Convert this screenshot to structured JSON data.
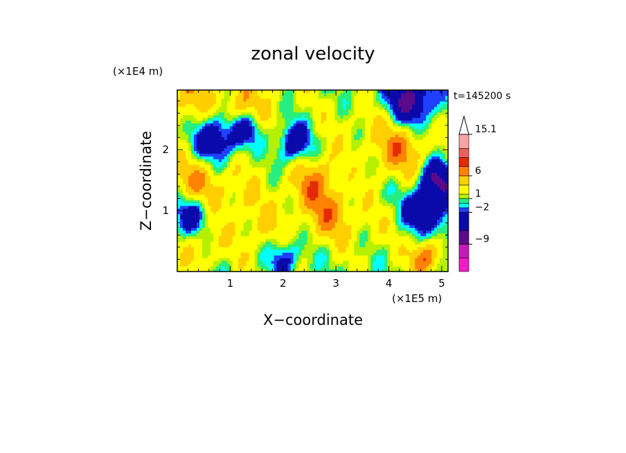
{
  "chart_data": {
    "type": "heatmap",
    "title": "zonal velocity",
    "xlabel": "X−coordinate",
    "ylabel": "Z−coordinate",
    "x_unit": "(×1E5 m)",
    "y_unit": "(×1E4 m)",
    "time_label": "t=145200 s",
    "xlim": [
      0,
      5.12
    ],
    "ylim": [
      0,
      2.98
    ],
    "x_ticks": [
      1,
      2,
      3,
      4,
      5
    ],
    "y_ticks": [
      1,
      2
    ],
    "colorbar": {
      "levels": [
        -15,
        -12,
        -9,
        -6,
        -2,
        -1,
        0,
        1,
        2,
        4,
        6,
        8,
        10,
        12,
        15.1
      ],
      "labels": [
        "15.1",
        "6",
        "1",
        "−2",
        "−9"
      ],
      "label_values": [
        15.1,
        6,
        1,
        -2,
        -9
      ],
      "colors": [
        "#f21dc7",
        "#c41cb7",
        "#5c0a8c",
        "#0a0aaa",
        "#2040ff",
        "#00ffff",
        "#26ee80",
        "#b4f000",
        "#ffff00",
        "#ffcf00",
        "#ff8200",
        "#e52a00",
        "#ee6060",
        "#f7a4a4"
      ],
      "extend_max_color": "#ffffff",
      "extends": "max"
    },
    "blobs": [
      {
        "x": 0.25,
        "y": 2.75,
        "r": 0.55,
        "v": 4
      },
      {
        "x": 1.5,
        "y": 2.5,
        "r": 0.9,
        "v": 2
      },
      {
        "x": 0.7,
        "y": 2.2,
        "r": 0.45,
        "v": -8
      },
      {
        "x": 1.3,
        "y": 2.35,
        "r": 0.3,
        "v": -6
      },
      {
        "x": 1.2,
        "y": 2.65,
        "r": 0.35,
        "v": 4
      },
      {
        "x": 0.4,
        "y": 1.5,
        "r": 0.5,
        "v": 5
      },
      {
        "x": 0.3,
        "y": 0.95,
        "r": 0.35,
        "v": -6
      },
      {
        "x": 1.1,
        "y": 1.1,
        "r": 0.6,
        "v": 2
      },
      {
        "x": 2.2,
        "y": 2.1,
        "r": 0.35,
        "v": -7
      },
      {
        "x": 2.6,
        "y": 1.5,
        "r": 0.5,
        "v": 5
      },
      {
        "x": 3.2,
        "y": 2.4,
        "r": 0.6,
        "v": 1
      },
      {
        "x": 4.4,
        "y": 2.8,
        "r": 0.45,
        "v": -9
      },
      {
        "x": 4.2,
        "y": 2.0,
        "r": 0.65,
        "v": 6
      },
      {
        "x": 4.9,
        "y": 1.5,
        "r": 0.35,
        "v": -8
      },
      {
        "x": 4.1,
        "y": 1.35,
        "r": 0.55,
        "v": -2
      },
      {
        "x": 3.7,
        "y": 0.85,
        "r": 0.55,
        "v": 2
      },
      {
        "x": 1.8,
        "y": 0.5,
        "r": 0.6,
        "v": 3
      },
      {
        "x": 2.0,
        "y": 0.25,
        "r": 0.35,
        "v": -6
      },
      {
        "x": 0.4,
        "y": 0.4,
        "r": 0.4,
        "v": 3
      },
      {
        "x": 4.7,
        "y": 0.25,
        "r": 0.3,
        "v": 7
      },
      {
        "x": 2.9,
        "y": 0.9,
        "r": 0.45,
        "v": 4
      },
      {
        "x": 3.4,
        "y": 1.8,
        "r": 0.4,
        "v": -1
      },
      {
        "x": 5.0,
        "y": 0.8,
        "r": 0.35,
        "v": -3
      },
      {
        "x": 4.6,
        "y": 1.0,
        "r": 0.3,
        "v": -6
      }
    ]
  }
}
